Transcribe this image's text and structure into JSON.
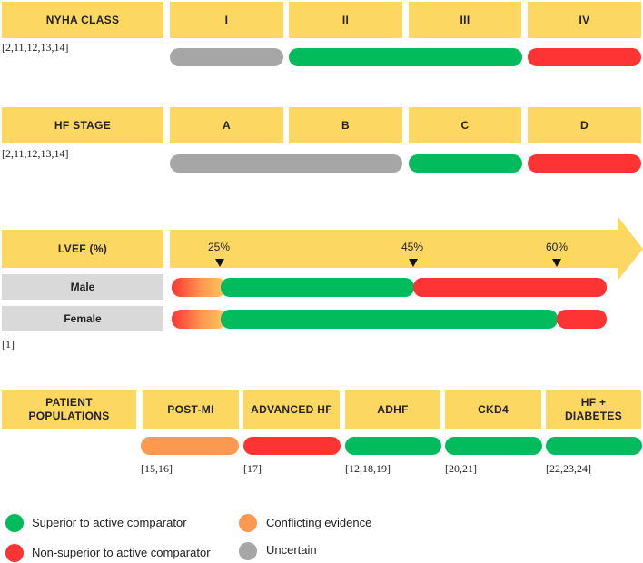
{
  "colors": {
    "header": "#fcd863",
    "label_gray": "#d9d9d9",
    "superior": "#02bb5d",
    "non_superior": "#fe3434",
    "conflicting": "#fd9851",
    "uncertain": "#a6a6a6"
  },
  "nyha": {
    "title": "NYHA CLASS",
    "columns": [
      "I",
      "II",
      "III",
      "IV"
    ],
    "ref": "[2,11,12,13,14]",
    "bars": [
      {
        "span": "I",
        "status": "uncertain"
      },
      {
        "span": "II–III",
        "status": "superior"
      },
      {
        "span": "IV",
        "status": "non_superior"
      }
    ]
  },
  "stage": {
    "title": "HF STAGE",
    "columns": [
      "A",
      "B",
      "C",
      "D"
    ],
    "ref": "[2,11,12,13,14]",
    "bars": [
      {
        "span": "A–B",
        "status": "uncertain"
      },
      {
        "span": "C",
        "status": "superior"
      },
      {
        "span": "D",
        "status": "non_superior"
      }
    ]
  },
  "lvef": {
    "title": "LVEF (%)",
    "ticks": [
      "25%",
      "45%",
      "60%"
    ],
    "ref": "[1]",
    "rows": [
      {
        "label": "Male",
        "segments": [
          {
            "range": "<25%",
            "status": "non_superior/conflicting gradient"
          },
          {
            "range": "25–45%",
            "status": "superior"
          },
          {
            "range": ">45%",
            "status": "non_superior"
          }
        ]
      },
      {
        "label": "Female",
        "segments": [
          {
            "range": "<25%",
            "status": "non_superior/conflicting gradient"
          },
          {
            "range": "25–60%",
            "status": "superior"
          },
          {
            "range": ">60%",
            "status": "non_superior"
          }
        ]
      }
    ]
  },
  "populations": {
    "title": "PATIENT POPULATIONS",
    "items": [
      {
        "label": "POST-MI",
        "status": "conflicting",
        "ref": "[15,16]"
      },
      {
        "label": "ADVANCED HF",
        "status": "non_superior",
        "ref": "[17]"
      },
      {
        "label": "ADHF",
        "status": "superior",
        "ref": "[12,18,19]"
      },
      {
        "label": "CKD4",
        "status": "superior",
        "ref": "[20,21]"
      },
      {
        "label": "HF + DIABETES",
        "status": "superior",
        "ref": "[22,23,24]"
      }
    ]
  },
  "legend": [
    {
      "label": "Superior to active comparator",
      "status": "superior"
    },
    {
      "label": "Non-superior to active comparator",
      "status": "non_superior"
    },
    {
      "label": "Conflicting evidence",
      "status": "conflicting"
    },
    {
      "label": "Uncertain",
      "status": "uncertain"
    }
  ]
}
